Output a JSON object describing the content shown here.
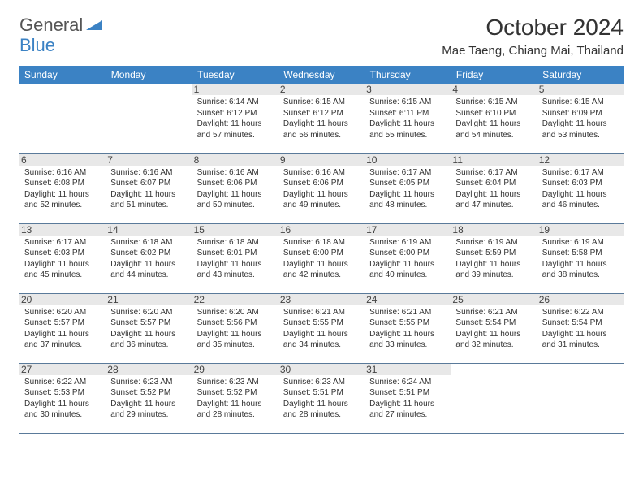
{
  "brand": {
    "part1": "General",
    "part2": "Blue"
  },
  "title": "October 2024",
  "location": "Mae Taeng, Chiang Mai, Thailand",
  "colors": {
    "headerBg": "#3b82c4",
    "border": "#5a7a9a",
    "dayBg": "#e8e8e8"
  },
  "weekdays": [
    "Sunday",
    "Monday",
    "Tuesday",
    "Wednesday",
    "Thursday",
    "Friday",
    "Saturday"
  ],
  "weeks": [
    [
      null,
      null,
      {
        "n": "1",
        "sr": "6:14 AM",
        "ss": "6:12 PM",
        "dl": "11 hours and 57 minutes."
      },
      {
        "n": "2",
        "sr": "6:15 AM",
        "ss": "6:12 PM",
        "dl": "11 hours and 56 minutes."
      },
      {
        "n": "3",
        "sr": "6:15 AM",
        "ss": "6:11 PM",
        "dl": "11 hours and 55 minutes."
      },
      {
        "n": "4",
        "sr": "6:15 AM",
        "ss": "6:10 PM",
        "dl": "11 hours and 54 minutes."
      },
      {
        "n": "5",
        "sr": "6:15 AM",
        "ss": "6:09 PM",
        "dl": "11 hours and 53 minutes."
      }
    ],
    [
      {
        "n": "6",
        "sr": "6:16 AM",
        "ss": "6:08 PM",
        "dl": "11 hours and 52 minutes."
      },
      {
        "n": "7",
        "sr": "6:16 AM",
        "ss": "6:07 PM",
        "dl": "11 hours and 51 minutes."
      },
      {
        "n": "8",
        "sr": "6:16 AM",
        "ss": "6:06 PM",
        "dl": "11 hours and 50 minutes."
      },
      {
        "n": "9",
        "sr": "6:16 AM",
        "ss": "6:06 PM",
        "dl": "11 hours and 49 minutes."
      },
      {
        "n": "10",
        "sr": "6:17 AM",
        "ss": "6:05 PM",
        "dl": "11 hours and 48 minutes."
      },
      {
        "n": "11",
        "sr": "6:17 AM",
        "ss": "6:04 PM",
        "dl": "11 hours and 47 minutes."
      },
      {
        "n": "12",
        "sr": "6:17 AM",
        "ss": "6:03 PM",
        "dl": "11 hours and 46 minutes."
      }
    ],
    [
      {
        "n": "13",
        "sr": "6:17 AM",
        "ss": "6:03 PM",
        "dl": "11 hours and 45 minutes."
      },
      {
        "n": "14",
        "sr": "6:18 AM",
        "ss": "6:02 PM",
        "dl": "11 hours and 44 minutes."
      },
      {
        "n": "15",
        "sr": "6:18 AM",
        "ss": "6:01 PM",
        "dl": "11 hours and 43 minutes."
      },
      {
        "n": "16",
        "sr": "6:18 AM",
        "ss": "6:00 PM",
        "dl": "11 hours and 42 minutes."
      },
      {
        "n": "17",
        "sr": "6:19 AM",
        "ss": "6:00 PM",
        "dl": "11 hours and 40 minutes."
      },
      {
        "n": "18",
        "sr": "6:19 AM",
        "ss": "5:59 PM",
        "dl": "11 hours and 39 minutes."
      },
      {
        "n": "19",
        "sr": "6:19 AM",
        "ss": "5:58 PM",
        "dl": "11 hours and 38 minutes."
      }
    ],
    [
      {
        "n": "20",
        "sr": "6:20 AM",
        "ss": "5:57 PM",
        "dl": "11 hours and 37 minutes."
      },
      {
        "n": "21",
        "sr": "6:20 AM",
        "ss": "5:57 PM",
        "dl": "11 hours and 36 minutes."
      },
      {
        "n": "22",
        "sr": "6:20 AM",
        "ss": "5:56 PM",
        "dl": "11 hours and 35 minutes."
      },
      {
        "n": "23",
        "sr": "6:21 AM",
        "ss": "5:55 PM",
        "dl": "11 hours and 34 minutes."
      },
      {
        "n": "24",
        "sr": "6:21 AM",
        "ss": "5:55 PM",
        "dl": "11 hours and 33 minutes."
      },
      {
        "n": "25",
        "sr": "6:21 AM",
        "ss": "5:54 PM",
        "dl": "11 hours and 32 minutes."
      },
      {
        "n": "26",
        "sr": "6:22 AM",
        "ss": "5:54 PM",
        "dl": "11 hours and 31 minutes."
      }
    ],
    [
      {
        "n": "27",
        "sr": "6:22 AM",
        "ss": "5:53 PM",
        "dl": "11 hours and 30 minutes."
      },
      {
        "n": "28",
        "sr": "6:23 AM",
        "ss": "5:52 PM",
        "dl": "11 hours and 29 minutes."
      },
      {
        "n": "29",
        "sr": "6:23 AM",
        "ss": "5:52 PM",
        "dl": "11 hours and 28 minutes."
      },
      {
        "n": "30",
        "sr": "6:23 AM",
        "ss": "5:51 PM",
        "dl": "11 hours and 28 minutes."
      },
      {
        "n": "31",
        "sr": "6:24 AM",
        "ss": "5:51 PM",
        "dl": "11 hours and 27 minutes."
      },
      null,
      null
    ]
  ]
}
